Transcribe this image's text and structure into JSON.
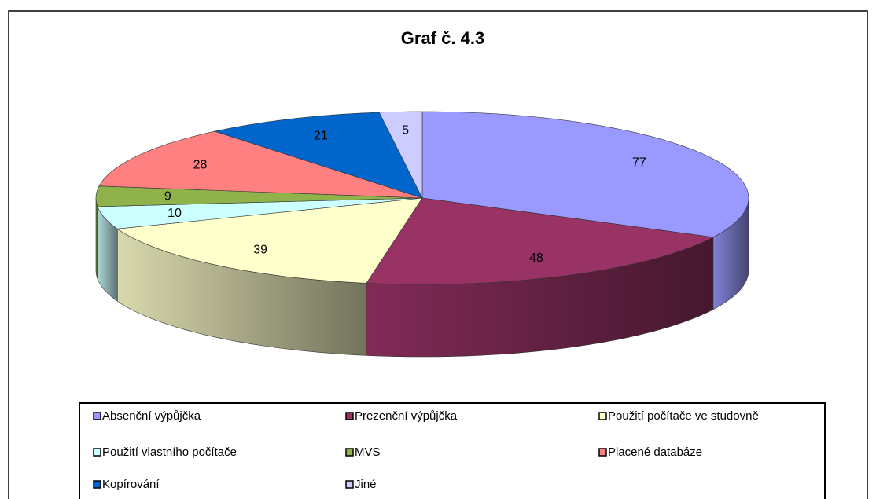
{
  "chart_data": {
    "type": "pie3d",
    "title": "Graf č. 4.3",
    "categories": [
      "Absenční výpůjčka",
      "Prezenční výpůjčka",
      "Použití počítače ve studovně",
      "Použití vlastního počítače",
      "MVS",
      "Placené databáze",
      "Kopírování",
      "Jiné"
    ],
    "values": [
      77,
      48,
      39,
      10,
      9,
      28,
      21,
      5
    ],
    "colors": [
      "#9999ff",
      "#993366",
      "#ffffcc",
      "#ccffff",
      "#8fb24a",
      "#ff8080",
      "#0066cc",
      "#ccccff"
    ],
    "legend": "bottom"
  }
}
